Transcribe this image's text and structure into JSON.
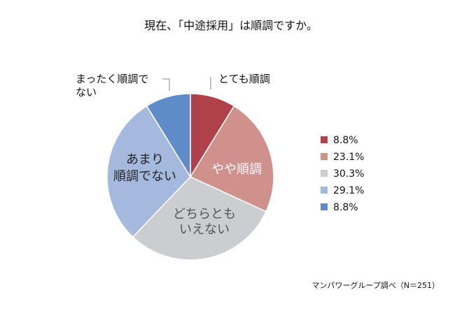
{
  "chart_data": {
    "type": "pie",
    "title": "現在、「中途採用」は順調ですか。",
    "slices": [
      {
        "name": "とても順調",
        "value": 8.8,
        "color": "#B0404A"
      },
      {
        "name": "やや順調",
        "value": 23.1,
        "color": "#D0908C"
      },
      {
        "name": "どちらともいえない",
        "value": 30.3,
        "color": "#CCCDD1"
      },
      {
        "name": "あまり順調でない",
        "value": 29.1,
        "color": "#A4B9DD"
      },
      {
        "name": "まったく順調でない",
        "value": 8.8,
        "color": "#5F8CC9"
      }
    ],
    "legend": {
      "position": "right",
      "entries": [
        "8.8%",
        "23.1%",
        "30.3%",
        "29.1%",
        "8.8%"
      ]
    },
    "labels": {
      "outer_top_right": "とても順調",
      "outer_top_left_line1": "まったく順調で",
      "outer_top_left_line2": "ない",
      "inner_slice2": "やや順調",
      "inner_slice3_line1": "どちらとも",
      "inner_slice3_line2": "いえない",
      "inner_slice4_line1": "あまり",
      "inner_slice4_line2": "順調でない"
    },
    "source": "マンパワーグループ調べ（N＝251）"
  }
}
